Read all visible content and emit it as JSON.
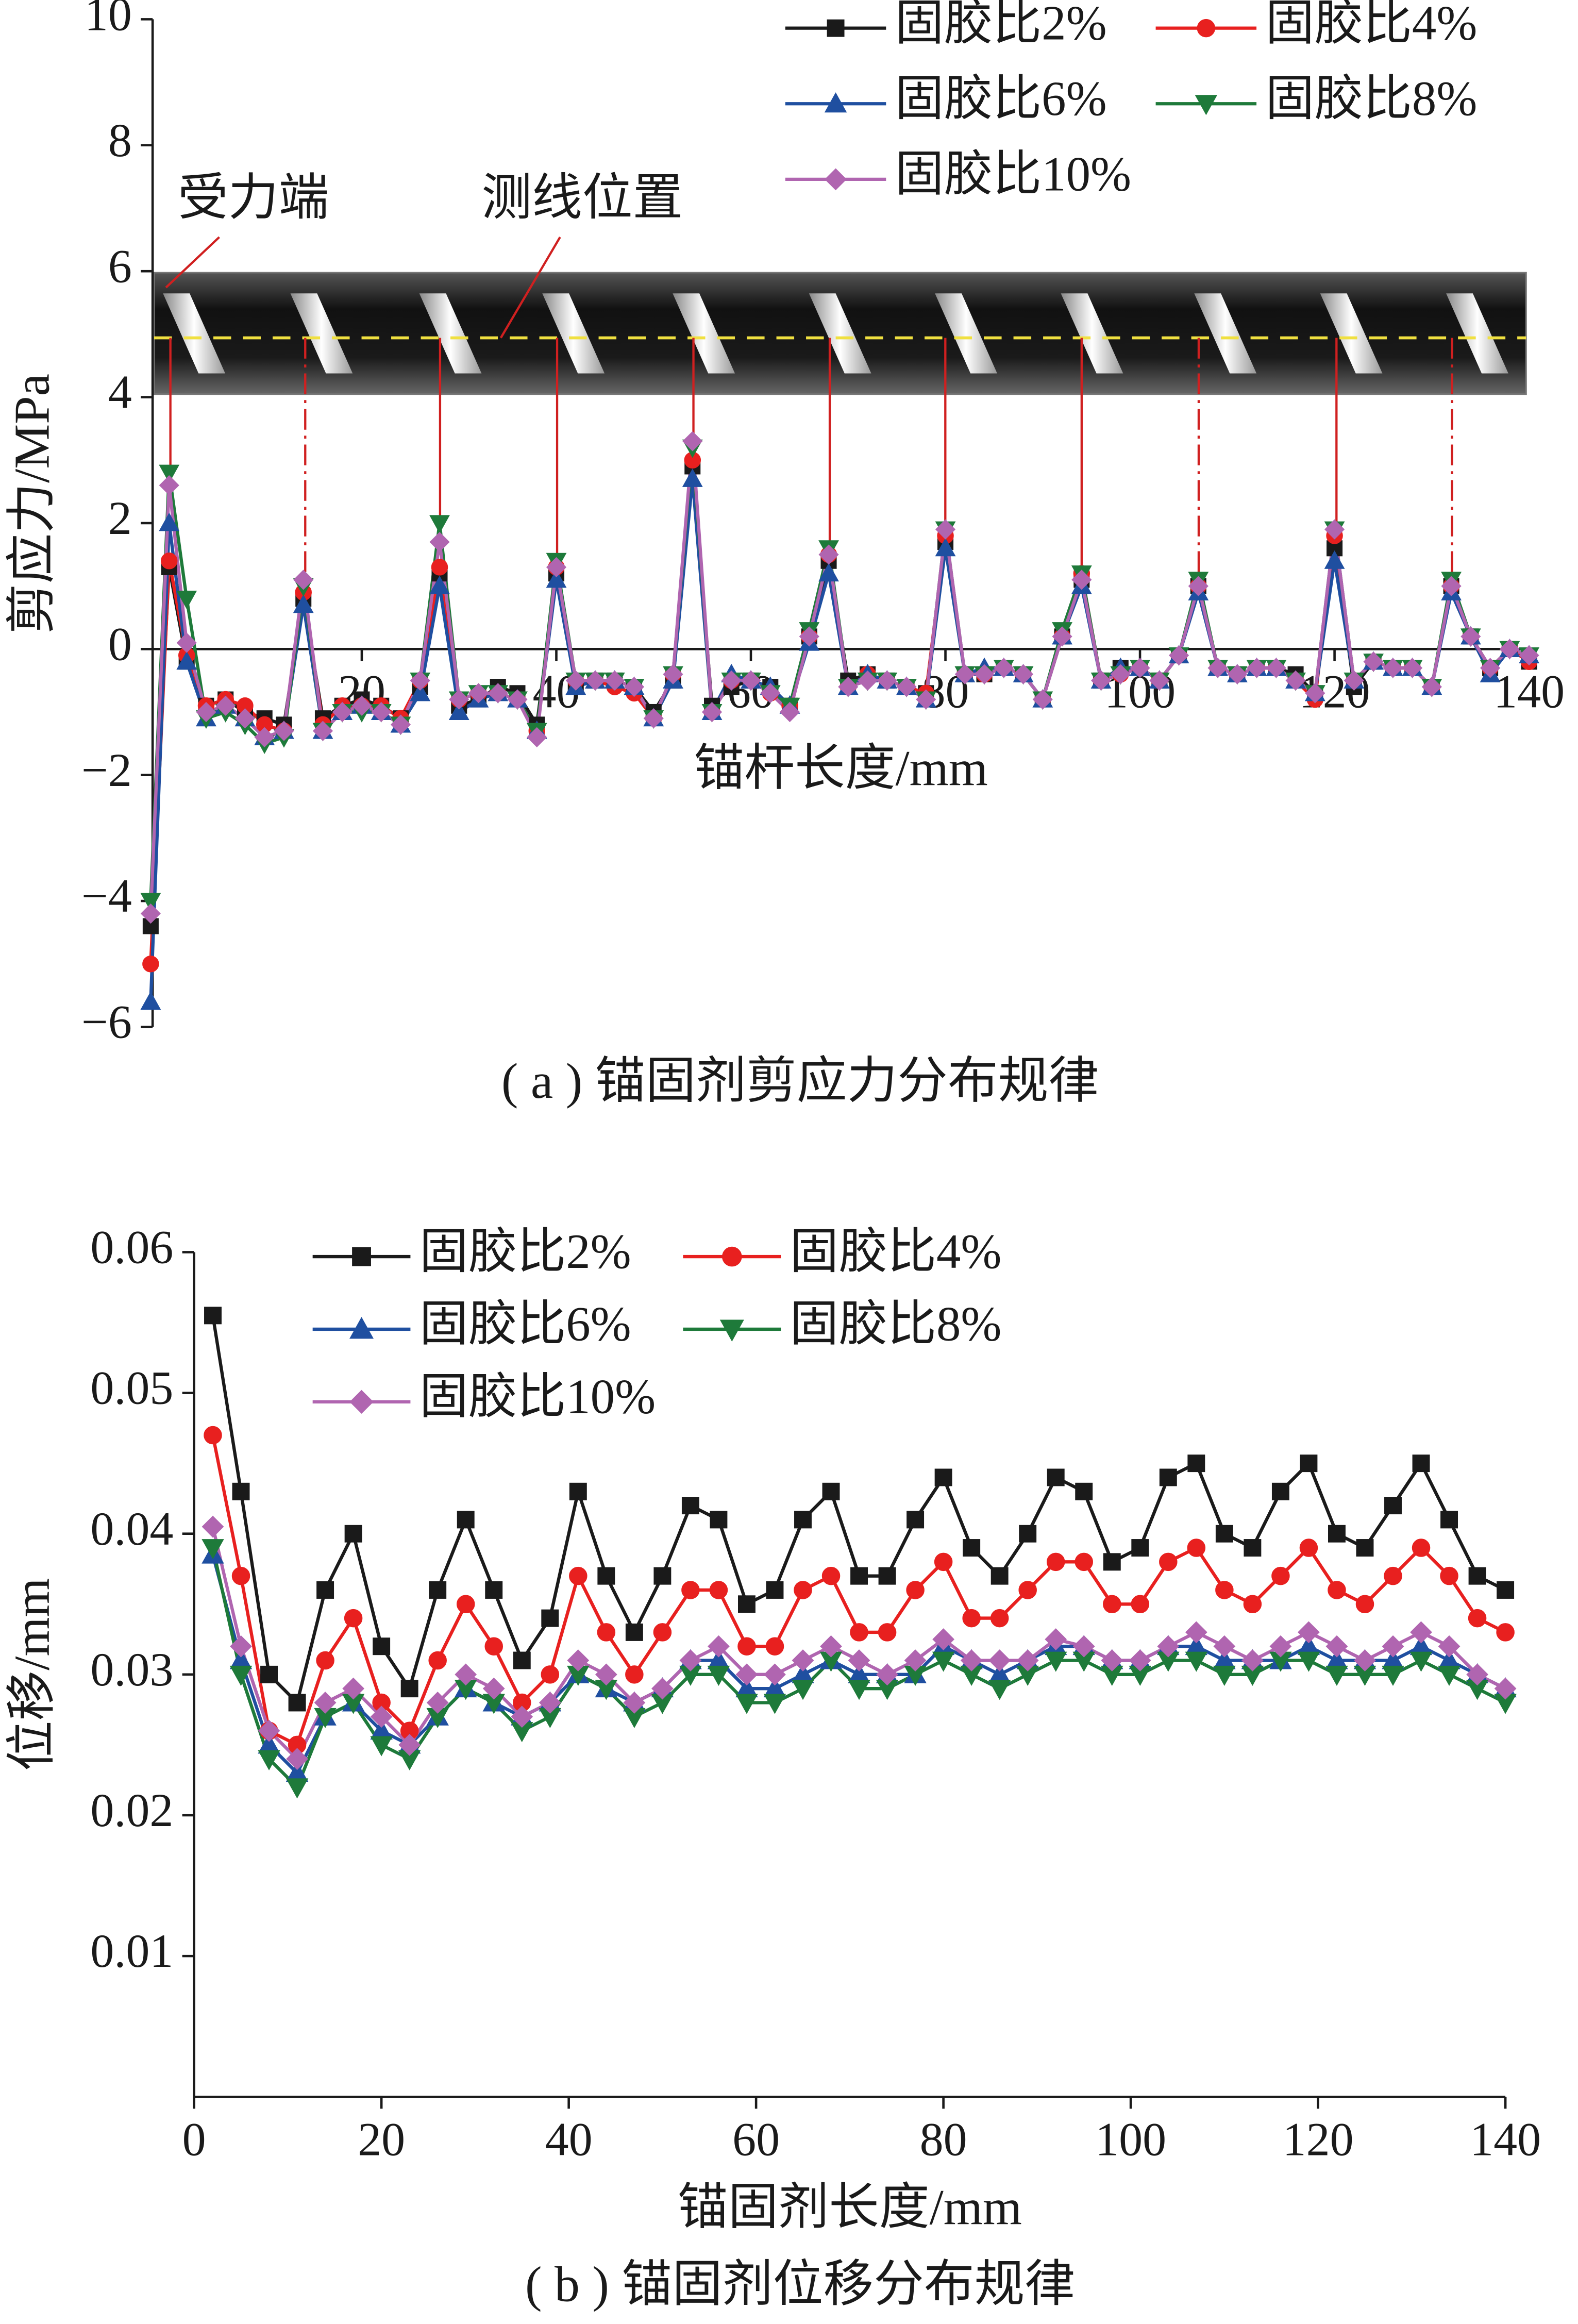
{
  "chart_data": [
    {
      "type": "line",
      "title": "( a ) 锚固剂剪应力分布规律",
      "xlabel": "锚杆长度/mm",
      "ylabel": "剪应力/MPa",
      "x": [
        -1.7,
        0.2,
        2,
        4,
        6,
        8,
        10,
        12,
        14,
        16,
        18,
        20,
        22,
        24,
        26,
        28,
        30,
        32,
        34,
        36,
        38,
        40,
        42,
        44,
        46,
        48,
        50,
        52,
        54,
        56,
        58,
        60,
        62,
        64,
        66,
        68,
        70,
        72,
        74,
        76,
        78,
        80,
        82,
        84,
        86,
        88,
        90,
        92,
        94,
        96,
        98,
        100,
        102,
        104,
        106,
        108,
        110,
        112,
        114,
        116,
        118,
        120,
        122,
        124,
        126,
        128,
        130,
        132,
        134,
        136,
        138,
        140
      ],
      "xlim": [
        -1.5,
        140
      ],
      "ylim": [
        -6,
        10
      ],
      "xticks": [
        20,
        40,
        60,
        80,
        100,
        120,
        140
      ],
      "yticks": [
        {
          "value": -6,
          "label": "−6"
        },
        {
          "value": -4,
          "label": "−4"
        },
        {
          "value": -2,
          "label": "−2"
        },
        0,
        2,
        4,
        6,
        8,
        10
      ],
      "legend": "upper right",
      "annotations": [
        "受力端",
        "测线位置"
      ],
      "series": [
        {
          "name": "固胶比2%",
          "color": "#1a1a1a",
          "marker": "square",
          "values": [
            -4.4,
            1.3,
            -0.2,
            -0.9,
            -0.8,
            -1.0,
            -1.1,
            -1.2,
            0.8,
            -1.1,
            -0.9,
            -0.8,
            -0.9,
            -1.1,
            -0.6,
            1.2,
            -0.9,
            -0.8,
            -0.6,
            -0.7,
            -1.2,
            1.2,
            -0.6,
            -0.5,
            -0.5,
            -0.6,
            -1.0,
            -0.5,
            2.9,
            -0.9,
            -0.6,
            -0.5,
            -0.6,
            -0.9,
            0.2,
            1.4,
            -0.5,
            -0.4,
            -0.5,
            -0.6,
            -0.7,
            1.7,
            -0.4,
            -0.4,
            -0.3,
            -0.4,
            -0.8,
            0.2,
            1.1,
            -0.5,
            -0.3,
            -0.3,
            -0.5,
            -0.1,
            1.0,
            -0.3,
            -0.4,
            -0.3,
            -0.3,
            -0.4,
            -0.7,
            1.6,
            -0.6,
            -0.2,
            -0.3,
            -0.3,
            -0.6,
            1.0,
            0.2,
            -0.3,
            0.0,
            -0.2
          ]
        },
        {
          "name": "固胶比4%",
          "color": "#e8201f",
          "marker": "circle",
          "values": [
            -5.0,
            1.4,
            -0.1,
            -0.9,
            -0.8,
            -0.9,
            -1.2,
            -1.3,
            0.9,
            -1.2,
            -0.9,
            -0.9,
            -0.9,
            -1.1,
            -0.5,
            1.3,
            -0.8,
            -0.7,
            -0.7,
            -0.8,
            -1.3,
            1.3,
            -0.5,
            -0.5,
            -0.6,
            -0.7,
            -1.1,
            -0.4,
            3.0,
            -1.0,
            -0.5,
            -0.5,
            -0.7,
            -0.9,
            0.2,
            1.5,
            -0.6,
            -0.4,
            -0.5,
            -0.6,
            -0.7,
            1.8,
            -0.4,
            -0.4,
            -0.3,
            -0.4,
            -0.8,
            0.2,
            1.2,
            -0.5,
            -0.4,
            -0.3,
            -0.5,
            -0.1,
            1.0,
            -0.3,
            -0.4,
            -0.3,
            -0.3,
            -0.5,
            -0.8,
            1.8,
            -0.5,
            -0.2,
            -0.3,
            -0.3,
            -0.6,
            1.0,
            0.2,
            -0.3,
            0.0,
            -0.2
          ]
        },
        {
          "name": "固胶比6%",
          "color": "#1f4fa0",
          "marker": "triangle",
          "values": [
            -5.6,
            2.0,
            -0.2,
            -1.1,
            -0.9,
            -1.1,
            -1.4,
            -1.3,
            0.7,
            -1.3,
            -1.0,
            -0.9,
            -1.0,
            -1.2,
            -0.7,
            1.0,
            -1.0,
            -0.8,
            -0.7,
            -0.8,
            -1.3,
            1.1,
            -0.6,
            -0.5,
            -0.5,
            -0.6,
            -1.1,
            -0.5,
            2.7,
            -1.0,
            -0.4,
            -0.5,
            -0.6,
            -0.9,
            0.1,
            1.2,
            -0.6,
            -0.4,
            -0.5,
            -0.6,
            -0.8,
            1.6,
            -0.4,
            -0.3,
            -0.3,
            -0.4,
            -0.8,
            0.2,
            1.0,
            -0.5,
            -0.3,
            -0.3,
            -0.5,
            -0.1,
            0.9,
            -0.3,
            -0.4,
            -0.3,
            -0.3,
            -0.5,
            -0.7,
            1.4,
            -0.5,
            -0.2,
            -0.3,
            -0.3,
            -0.6,
            0.9,
            0.2,
            -0.4,
            0.0,
            -0.1
          ]
        },
        {
          "name": "固胶比8%",
          "color": "#1e7a3a",
          "marker": "triangle-down",
          "values": [
            -4.0,
            2.8,
            0.8,
            -1.1,
            -1.0,
            -1.2,
            -1.5,
            -1.4,
            1.0,
            -1.3,
            -1.0,
            -1.0,
            -1.0,
            -1.2,
            -0.5,
            2.0,
            -0.8,
            -0.7,
            -0.7,
            -0.8,
            -1.3,
            1.4,
            -0.5,
            -0.5,
            -0.5,
            -0.6,
            -1.1,
            -0.4,
            3.2,
            -1.0,
            -0.5,
            -0.5,
            -0.7,
            -0.9,
            0.3,
            1.6,
            -0.6,
            -0.5,
            -0.5,
            -0.6,
            -0.8,
            1.9,
            -0.4,
            -0.4,
            -0.3,
            -0.4,
            -0.8,
            0.3,
            1.2,
            -0.5,
            -0.4,
            -0.3,
            -0.5,
            -0.1,
            1.1,
            -0.3,
            -0.4,
            -0.3,
            -0.3,
            -0.5,
            -0.7,
            1.9,
            -0.5,
            -0.2,
            -0.3,
            -0.3,
            -0.6,
            1.1,
            0.2,
            -0.3,
            0.0,
            -0.1
          ]
        },
        {
          "name": "固胶比10%",
          "color": "#b065b0",
          "marker": "diamond",
          "values": [
            -4.2,
            2.6,
            0.1,
            -1.0,
            -0.9,
            -1.1,
            -1.4,
            -1.3,
            1.1,
            -1.3,
            -1.0,
            -0.9,
            -1.0,
            -1.2,
            -0.5,
            1.7,
            -0.8,
            -0.7,
            -0.7,
            -0.8,
            -1.4,
            1.3,
            -0.5,
            -0.5,
            -0.5,
            -0.6,
            -1.1,
            -0.4,
            3.3,
            -1.0,
            -0.5,
            -0.5,
            -0.7,
            -1.0,
            0.2,
            1.5,
            -0.6,
            -0.5,
            -0.5,
            -0.6,
            -0.8,
            1.9,
            -0.4,
            -0.4,
            -0.3,
            -0.4,
            -0.8,
            0.2,
            1.1,
            -0.5,
            -0.4,
            -0.3,
            -0.5,
            -0.1,
            1.0,
            -0.3,
            -0.4,
            -0.3,
            -0.3,
            -0.5,
            -0.7,
            1.9,
            -0.5,
            -0.2,
            -0.3,
            -0.3,
            -0.6,
            1.0,
            0.2,
            -0.3,
            0.0,
            -0.1
          ]
        }
      ]
    },
    {
      "type": "line",
      "title": "( b ) 锚固剂位移分布规律",
      "xlabel": "锚固剂长度/mm",
      "ylabel": "位移/mm",
      "x": [
        2,
        5,
        8,
        11,
        14,
        17,
        20,
        23,
        26,
        29,
        32,
        35,
        38,
        41,
        44,
        47,
        50,
        53,
        56,
        59,
        62,
        65,
        68,
        71,
        74,
        77,
        80,
        83,
        86,
        89,
        92,
        95,
        98,
        101,
        104,
        107,
        110,
        113,
        116,
        119,
        122,
        125,
        128,
        131,
        134,
        137,
        140
      ],
      "xlim": [
        0,
        140
      ],
      "ylim": [
        0,
        0.06
      ],
      "xticks": [
        0,
        20,
        40,
        60,
        80,
        100,
        120,
        140
      ],
      "yticks": [
        0.01,
        0.02,
        0.03,
        0.04,
        0.05,
        0.06
      ],
      "legend": "upper left",
      "series": [
        {
          "name": "固胶比2%",
          "color": "#1a1a1a",
          "marker": "square",
          "values": [
            0.0555,
            0.043,
            0.03,
            0.028,
            0.036,
            0.04,
            0.032,
            0.029,
            0.036,
            0.041,
            0.036,
            0.031,
            0.034,
            0.043,
            0.037,
            0.033,
            0.037,
            0.042,
            0.041,
            0.035,
            0.036,
            0.041,
            0.043,
            0.037,
            0.037,
            0.041,
            0.044,
            0.039,
            0.037,
            0.04,
            0.044,
            0.043,
            0.038,
            0.039,
            0.044,
            0.045,
            0.04,
            0.039,
            0.043,
            0.045,
            0.04,
            0.039,
            0.042,
            0.045,
            0.041,
            0.037,
            0.036
          ]
        },
        {
          "name": "固胶比4%",
          "color": "#e8201f",
          "marker": "circle",
          "values": [
            0.047,
            0.037,
            0.026,
            0.025,
            0.031,
            0.034,
            0.028,
            0.026,
            0.031,
            0.035,
            0.032,
            0.028,
            0.03,
            0.037,
            0.033,
            0.03,
            0.033,
            0.036,
            0.036,
            0.032,
            0.032,
            0.036,
            0.037,
            0.033,
            0.033,
            0.036,
            0.038,
            0.034,
            0.034,
            0.036,
            0.038,
            0.038,
            0.035,
            0.035,
            0.038,
            0.039,
            0.036,
            0.035,
            0.037,
            0.039,
            0.036,
            0.035,
            0.037,
            0.039,
            0.037,
            0.034,
            0.033
          ]
        },
        {
          "name": "固胶比6%",
          "color": "#1f4fa0",
          "marker": "triangle",
          "values": [
            0.0385,
            0.031,
            0.025,
            0.023,
            0.027,
            0.028,
            0.026,
            0.025,
            0.027,
            0.029,
            0.028,
            0.027,
            0.028,
            0.03,
            0.029,
            0.028,
            0.029,
            0.031,
            0.031,
            0.029,
            0.029,
            0.03,
            0.031,
            0.03,
            0.03,
            0.03,
            0.032,
            0.031,
            0.03,
            0.031,
            0.032,
            0.032,
            0.031,
            0.031,
            0.032,
            0.032,
            0.031,
            0.031,
            0.031,
            0.032,
            0.031,
            0.031,
            0.031,
            0.032,
            0.031,
            0.03,
            0.029
          ]
        },
        {
          "name": "固胶比8%",
          "color": "#1e7a3a",
          "marker": "triangle-down",
          "values": [
            0.039,
            0.03,
            0.024,
            0.022,
            0.027,
            0.028,
            0.025,
            0.024,
            0.027,
            0.029,
            0.028,
            0.026,
            0.027,
            0.03,
            0.029,
            0.027,
            0.028,
            0.03,
            0.03,
            0.028,
            0.028,
            0.029,
            0.031,
            0.029,
            0.029,
            0.03,
            0.031,
            0.03,
            0.029,
            0.03,
            0.031,
            0.031,
            0.03,
            0.03,
            0.031,
            0.031,
            0.03,
            0.03,
            0.031,
            0.031,
            0.03,
            0.03,
            0.03,
            0.031,
            0.03,
            0.029,
            0.028
          ]
        },
        {
          "name": "固胶比10%",
          "color": "#b065b0",
          "marker": "diamond",
          "values": [
            0.0405,
            0.032,
            0.026,
            0.024,
            0.028,
            0.029,
            0.027,
            0.025,
            0.028,
            0.03,
            0.029,
            0.027,
            0.028,
            0.031,
            0.03,
            0.028,
            0.029,
            0.031,
            0.032,
            0.03,
            0.03,
            0.031,
            0.032,
            0.031,
            0.03,
            0.031,
            0.0325,
            0.031,
            0.031,
            0.031,
            0.0325,
            0.032,
            0.031,
            0.031,
            0.032,
            0.033,
            0.032,
            0.031,
            0.032,
            0.033,
            0.032,
            0.031,
            0.032,
            0.033,
            0.032,
            0.03,
            0.029
          ]
        }
      ]
    }
  ]
}
